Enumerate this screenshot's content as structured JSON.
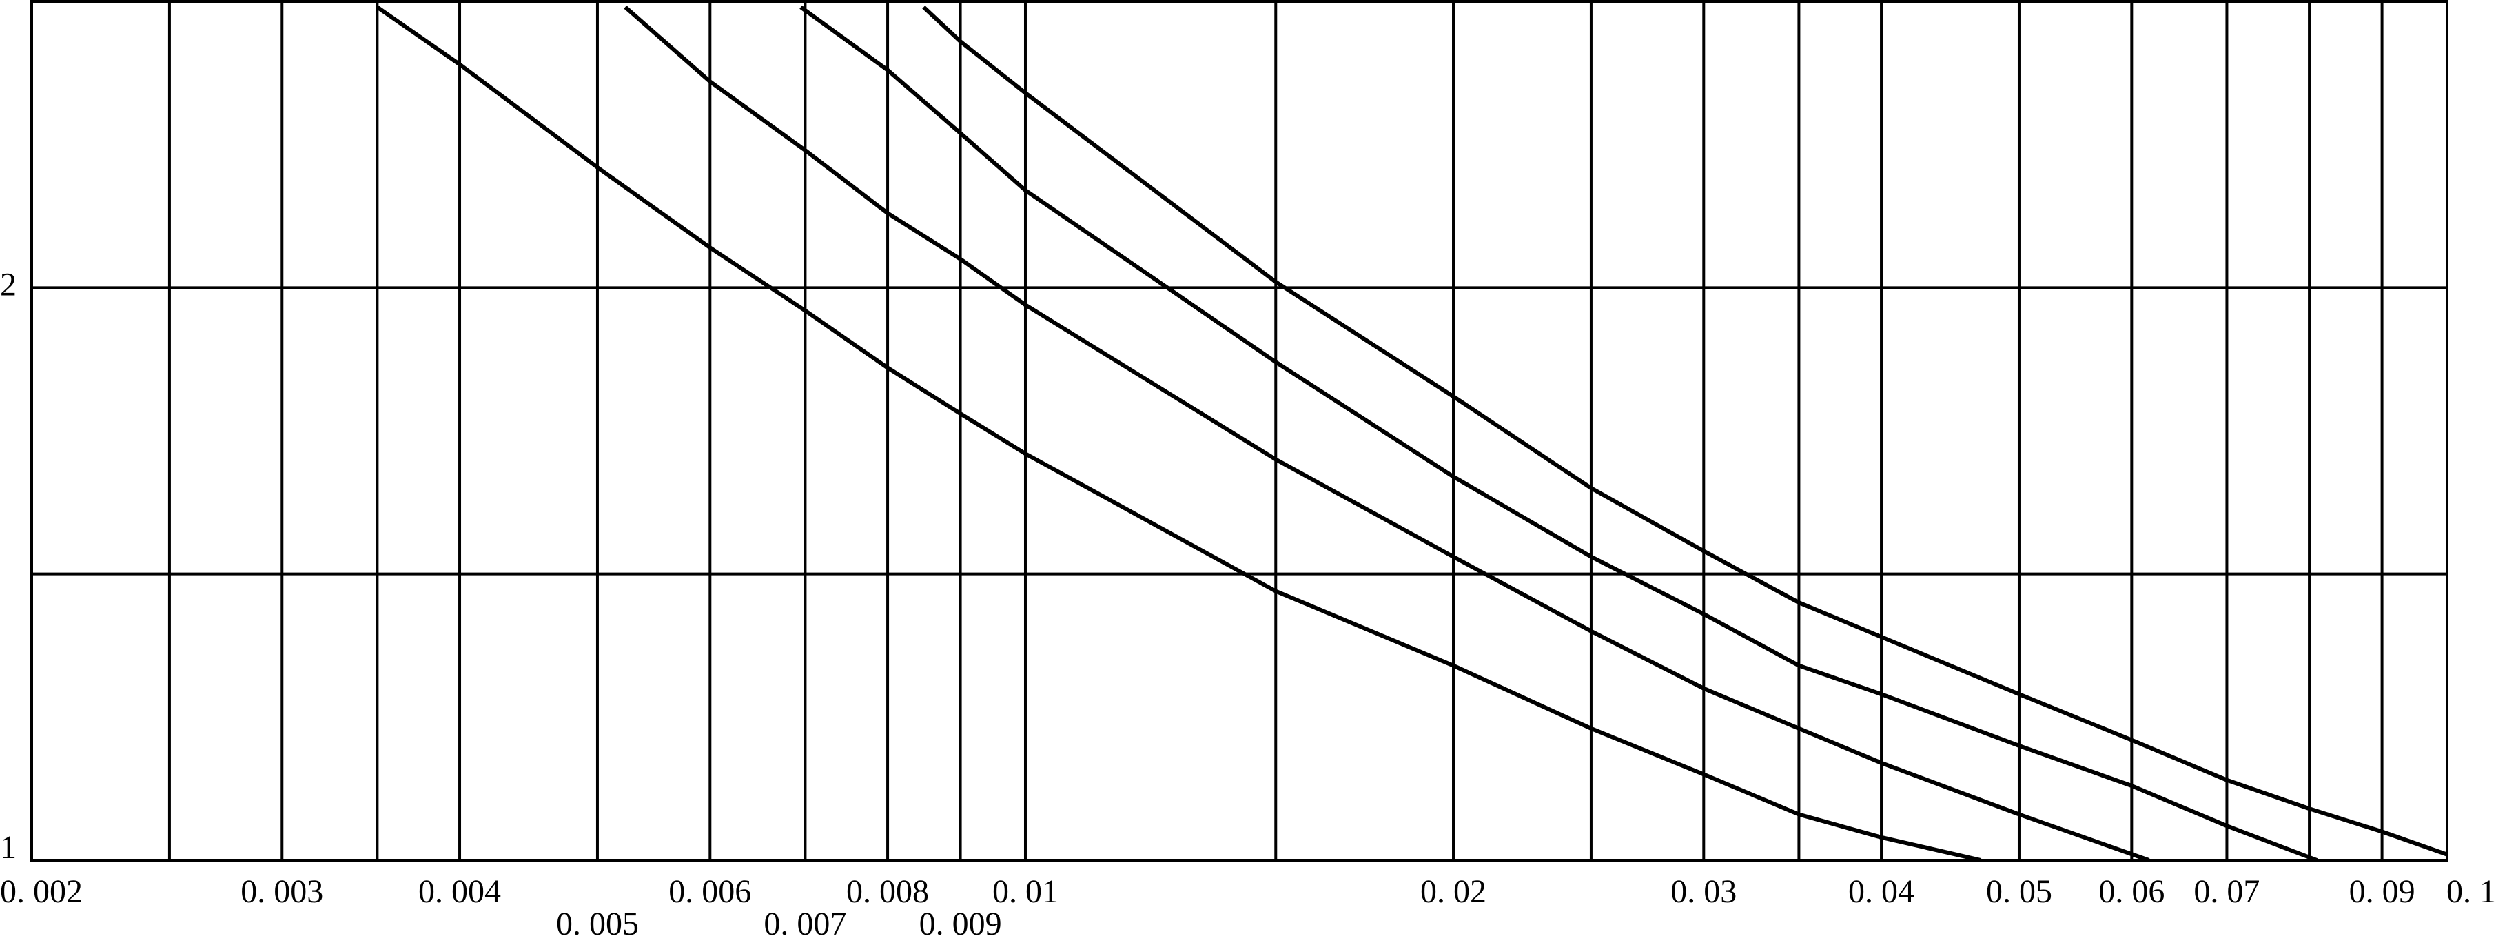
{
  "chart_data": {
    "type": "line",
    "xscale": "log",
    "xlim": [
      0.002,
      0.1
    ],
    "ylim": [
      1,
      2.5
    ],
    "xticks": [
      {
        "value": 0.002,
        "label": "0. 002"
      },
      {
        "value": 0.003,
        "label": "0. 003"
      },
      {
        "value": 0.004,
        "label": "0. 004"
      },
      {
        "value": 0.005,
        "label": "0. 005"
      },
      {
        "value": 0.006,
        "label": "0. 006"
      },
      {
        "value": 0.007,
        "label": "0. 007"
      },
      {
        "value": 0.008,
        "label": "0. 008"
      },
      {
        "value": 0.009,
        "label": "0. 009"
      },
      {
        "value": 0.01,
        "label": "0. 01"
      },
      {
        "value": 0.02,
        "label": "0. 02"
      },
      {
        "value": 0.03,
        "label": "0. 03"
      },
      {
        "value": 0.04,
        "label": "0. 04"
      },
      {
        "value": 0.05,
        "label": "0. 05"
      },
      {
        "value": 0.06,
        "label": "0. 06"
      },
      {
        "value": 0.07,
        "label": "0. 07"
      },
      {
        "value": 0.09,
        "label": "0. 09"
      },
      {
        "value": 0.1,
        "label": "0. 1"
      }
    ],
    "xgrid_extra": [
      0.0025,
      0.0035,
      0.015,
      0.025,
      0.035,
      0.08
    ],
    "yticks": [
      1,
      2
    ],
    "ygrid_extra": [
      1.5
    ],
    "grid": true,
    "color": "#000000",
    "series": [
      {
        "x": [
          0.0035,
          0.004,
          0.005,
          0.006,
          0.007,
          0.008,
          0.009,
          0.01,
          0.015,
          0.02,
          0.025,
          0.03,
          0.035,
          0.04,
          0.047
        ],
        "values": [
          2.49,
          2.39,
          2.21,
          2.07,
          1.96,
          1.86,
          1.78,
          1.71,
          1.47,
          1.34,
          1.23,
          1.15,
          1.08,
          1.04,
          1
        ]
      },
      {
        "x": [
          0.00523,
          0.006,
          0.007,
          0.008,
          0.009,
          0.01,
          0.015,
          0.02,
          0.025,
          0.03,
          0.035,
          0.04,
          0.05,
          0.0617
        ],
        "values": [
          2.49,
          2.36,
          2.24,
          2.13,
          2.05,
          1.97,
          1.7,
          1.53,
          1.4,
          1.3,
          1.23,
          1.17,
          1.08,
          1
        ]
      },
      {
        "x": [
          0.00695,
          0.008,
          0.009,
          0.01,
          0.015,
          0.02,
          0.025,
          0.03,
          0.035,
          0.04,
          0.05,
          0.06,
          0.07,
          0.081
        ],
        "values": [
          2.49,
          2.38,
          2.27,
          2.17,
          1.87,
          1.67,
          1.53,
          1.43,
          1.34,
          1.29,
          1.2,
          1.13,
          1.06,
          1
        ]
      },
      {
        "x": [
          0.00848,
          0.009,
          0.01,
          0.015,
          0.02,
          0.025,
          0.03,
          0.035,
          0.04,
          0.05,
          0.06,
          0.07,
          0.08,
          0.09,
          0.1
        ],
        "values": [
          2.49,
          2.43,
          2.34,
          2.01,
          1.81,
          1.65,
          1.54,
          1.45,
          1.39,
          1.29,
          1.21,
          1.14,
          1.09,
          1.05,
          1.01
        ]
      }
    ]
  }
}
